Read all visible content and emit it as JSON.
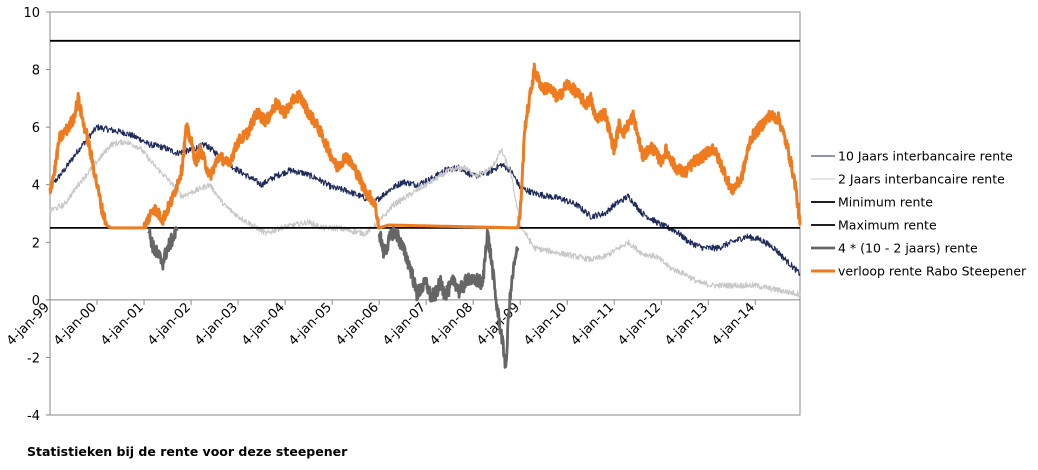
{
  "caption": "Statistieken bij de rente voor deze steepener",
  "chart_data": {
    "type": "line",
    "x_axis": {
      "type": "date",
      "range": [
        "1999-01-04",
        "2014-12-31"
      ],
      "tick_labels": [
        "4-jan-99",
        "4-jan-00",
        "4-jan-01",
        "4-jan-02",
        "4-jan-03",
        "4-jan-04",
        "4-jan-05",
        "4-jan-06",
        "4-jan-07",
        "4-jan-08",
        "4-jan-09",
        "4-jan-10",
        "4-jan-11",
        "4-jan-12",
        "4-jan-13",
        "4-jan-14"
      ],
      "tick_years": [
        1999,
        2000,
        2001,
        2002,
        2003,
        2004,
        2005,
        2006,
        2007,
        2008,
        2009,
        2010,
        2011,
        2012,
        2013,
        2014
      ]
    },
    "y_axis": {
      "range": [
        -4,
        10
      ],
      "ticks": [
        -4,
        -2,
        0,
        2,
        4,
        6,
        8,
        10
      ]
    },
    "grid": false,
    "legend_position": "right",
    "series": [
      {
        "name": "10 Jaars interbancaire rente",
        "color": "#1f2a5c",
        "x": [
          1999.0,
          1999.3,
          1999.6,
          1999.85,
          2000.0,
          2000.3,
          2000.6,
          2000.9,
          2001.1,
          2001.4,
          2001.7,
          2002.0,
          2002.3,
          2002.6,
          2002.9,
          2003.2,
          2003.5,
          2003.8,
          2004.1,
          2004.4,
          2004.7,
          2005.0,
          2005.3,
          2005.6,
          2005.9,
          2006.2,
          2006.5,
          2006.8,
          2007.1,
          2007.4,
          2007.7,
          2008.0,
          2008.3,
          2008.6,
          2008.8,
          2009.0,
          2009.3,
          2009.6,
          2009.9,
          2010.2,
          2010.5,
          2010.8,
          2011.0,
          2011.3,
          2011.6,
          2011.8,
          2012.0,
          2012.3,
          2012.6,
          2012.9,
          2013.2,
          2013.5,
          2013.8,
          2014.1,
          2014.4,
          2014.7,
          2014.95
        ],
        "y": [
          3.9,
          4.5,
          5.2,
          5.7,
          6.0,
          5.9,
          5.8,
          5.6,
          5.4,
          5.3,
          5.1,
          5.2,
          5.4,
          5.0,
          4.6,
          4.3,
          4.0,
          4.3,
          4.5,
          4.4,
          4.2,
          3.9,
          3.8,
          3.6,
          3.4,
          3.8,
          4.1,
          4.0,
          4.2,
          4.5,
          4.6,
          4.3,
          4.4,
          4.7,
          4.5,
          3.9,
          3.7,
          3.6,
          3.5,
          3.3,
          2.9,
          3.0,
          3.3,
          3.6,
          3.0,
          2.8,
          2.6,
          2.4,
          2.0,
          1.8,
          1.8,
          2.0,
          2.2,
          2.1,
          1.8,
          1.3,
          0.9
        ]
      },
      {
        "name": "2 Jaars interbancaire rente",
        "color": "#c8c8c8",
        "x": [
          1999.0,
          1999.3,
          1999.6,
          2000.0,
          2000.3,
          2000.6,
          2000.9,
          2001.2,
          2001.5,
          2001.8,
          2002.1,
          2002.4,
          2002.7,
          2003.0,
          2003.3,
          2003.6,
          2003.9,
          2004.2,
          2004.5,
          2004.8,
          2005.1,
          2005.4,
          2005.7,
          2006.0,
          2006.3,
          2006.6,
          2006.9,
          2007.2,
          2007.5,
          2007.8,
          2008.1,
          2008.4,
          2008.6,
          2008.8,
          2009.0,
          2009.3,
          2009.6,
          2009.9,
          2010.2,
          2010.5,
          2010.8,
          2011.0,
          2011.3,
          2011.6,
          2011.9,
          2012.2,
          2012.5,
          2012.8,
          2013.1,
          2013.4,
          2013.7,
          2014.0,
          2014.3,
          2014.6,
          2014.95
        ],
        "y": [
          3.1,
          3.3,
          4.0,
          4.8,
          5.4,
          5.5,
          5.3,
          4.7,
          4.2,
          3.6,
          3.8,
          4.0,
          3.3,
          2.9,
          2.6,
          2.3,
          2.5,
          2.6,
          2.7,
          2.5,
          2.5,
          2.4,
          2.3,
          2.7,
          3.3,
          3.6,
          3.9,
          4.2,
          4.5,
          4.6,
          4.3,
          4.6,
          5.2,
          4.4,
          2.6,
          1.8,
          1.7,
          1.6,
          1.5,
          1.4,
          1.5,
          1.7,
          2.0,
          1.6,
          1.5,
          1.1,
          0.9,
          0.6,
          0.5,
          0.5,
          0.5,
          0.5,
          0.4,
          0.3,
          0.2
        ]
      },
      {
        "name": "Minimum rente",
        "color": "#000000",
        "x": [
          1999.0,
          2014.95
        ],
        "y": [
          9,
          9
        ]
      },
      {
        "name": "Maximum rente",
        "color": "#000000",
        "x": [
          1999.0,
          2014.95
        ],
        "y": [
          2.5,
          2.5
        ]
      },
      {
        "name": "4 * (10 - 2 jaars) rente",
        "color": "#666666",
        "x": [
          2001.1,
          2001.2,
          2001.4,
          2001.5,
          2001.7,
          2006.0,
          2006.1,
          2006.2,
          2006.3,
          2006.4,
          2006.5,
          2006.6,
          2006.7,
          2006.8,
          2006.9,
          2007.0,
          2007.1,
          2007.2,
          2007.3,
          2007.4,
          2007.5,
          2007.6,
          2007.7,
          2007.8,
          2007.9,
          2008.0,
          2008.1,
          2008.2,
          2008.3,
          2008.4,
          2008.5,
          2008.6,
          2008.7,
          2008.75,
          2008.85,
          2008.95
        ],
        "y": [
          2.4,
          1.8,
          1.3,
          1.8,
          2.4,
          2.4,
          1.6,
          2.0,
          2.4,
          2.2,
          1.8,
          1.4,
          0.9,
          0.2,
          0.4,
          0.6,
          0.1,
          0.2,
          0.6,
          0.2,
          0.4,
          0.7,
          0.3,
          0.5,
          0.8,
          0.6,
          0.7,
          0.5,
          2.4,
          1.2,
          -0.2,
          -1.2,
          -2.4,
          -0.5,
          1.0,
          1.8
        ]
      },
      {
        "name": "verloop rente Rabo Steepener",
        "color": "#f07a1e",
        "x": [
          1999.0,
          1999.1,
          1999.2,
          1999.4,
          1999.5,
          1999.6,
          1999.7,
          1999.8,
          1999.9,
          2000.0,
          2000.1,
          2000.2,
          2000.3,
          2001.0,
          2001.2,
          2001.4,
          2001.6,
          2001.8,
          2001.9,
          2002.0,
          2002.1,
          2002.2,
          2002.4,
          2002.6,
          2002.8,
          2003.0,
          2003.2,
          2003.4,
          2003.6,
          2003.8,
          2004.0,
          2004.2,
          2004.3,
          2004.5,
          2004.7,
          2004.9,
          2005.1,
          2005.3,
          2005.5,
          2005.7,
          2005.9,
          2006.0,
          2006.2,
          2008.95,
          2009.0,
          2009.1,
          2009.2,
          2009.3,
          2009.4,
          2009.5,
          2009.6,
          2009.8,
          2010.0,
          2010.2,
          2010.4,
          2010.5,
          2010.6,
          2010.8,
          2011.0,
          2011.1,
          2011.2,
          2011.4,
          2011.6,
          2011.8,
          2012.0,
          2012.1,
          2012.3,
          2012.5,
          2012.7,
          2012.9,
          2013.1,
          2013.3,
          2013.5,
          2013.7,
          2013.9,
          2014.1,
          2014.3,
          2014.5,
          2014.7,
          2014.85,
          2014.95
        ],
        "y": [
          3.8,
          4.5,
          5.6,
          6.0,
          6.3,
          7.0,
          6.2,
          5.6,
          4.8,
          4.0,
          3.2,
          2.6,
          2.5,
          2.5,
          3.2,
          2.8,
          3.5,
          4.5,
          6.0,
          5.5,
          4.8,
          5.2,
          4.3,
          5.0,
          4.7,
          5.5,
          5.8,
          6.5,
          6.2,
          6.8,
          6.5,
          7.0,
          7.1,
          6.5,
          6.0,
          5.3,
          4.6,
          5.0,
          4.5,
          3.8,
          3.4,
          2.5,
          2.6,
          2.5,
          3.0,
          6.0,
          7.0,
          8.0,
          7.6,
          7.3,
          7.4,
          7.0,
          7.5,
          7.2,
          6.8,
          7.0,
          6.3,
          6.5,
          5.2,
          6.1,
          5.8,
          6.4,
          5.0,
          5.3,
          4.8,
          5.2,
          4.6,
          4.4,
          4.8,
          5.0,
          5.3,
          4.6,
          3.8,
          4.2,
          5.6,
          6.0,
          6.4,
          6.3,
          5.2,
          4.0,
          2.6
        ]
      }
    ],
    "legend": [
      "10 Jaars interbancaire rente",
      "2 Jaars interbancaire rente",
      "Minimum rente",
      "Maximum rente",
      "4 * (10 - 2 jaars) rente",
      "verloop rente Rabo Steepener"
    ]
  }
}
